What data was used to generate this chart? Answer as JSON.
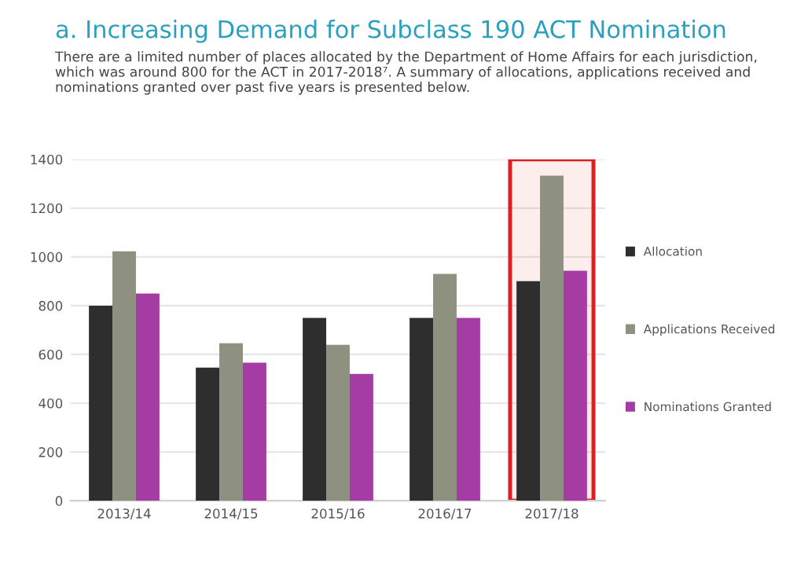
{
  "chart_data": {
    "type": "bar",
    "title": "a. Increasing Demand for Subclass 190 ACT Nomination",
    "subtitle": "There are a limited number of places allocated by the Department of Home Affairs for each jurisdiction, which was around 800 for the ACT in 2017-2018⁷. A summary of allocations, applications received and nominations granted over past five years is presented below.",
    "categories": [
      "2013/14",
      "2014/15",
      "2015/16",
      "2016/17",
      "2017/18"
    ],
    "series": [
      {
        "name": "Allocation",
        "color": "#2e2e2e",
        "values": [
          800,
          546,
          750,
          750,
          900
        ]
      },
      {
        "name": "Applications Received",
        "color": "#8e9080",
        "values": [
          1023,
          646,
          639,
          930,
          1333
        ]
      },
      {
        "name": "Nominations Granted",
        "color": "#a43ca4",
        "values": [
          850,
          566,
          520,
          750,
          943
        ]
      }
    ],
    "ylim": [
      0,
      1400
    ],
    "yticks": [
      0,
      200,
      400,
      600,
      800,
      1000,
      1200,
      1400
    ],
    "grid": "y",
    "legend": "right",
    "bands": [
      {
        "axis": "x",
        "from": "2017/18",
        "to": "2017/18",
        "color": "#e02020"
      }
    ]
  }
}
